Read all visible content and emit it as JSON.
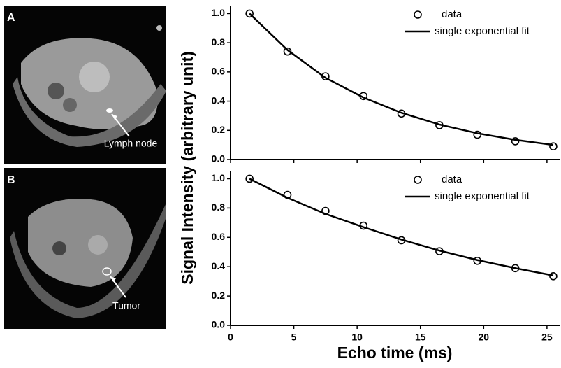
{
  "images": [
    {
      "letter": "A",
      "label": "Lymph node"
    },
    {
      "letter": "B",
      "label": "Tumor"
    }
  ],
  "chart_data": [
    {
      "type": "line",
      "ylabel": "Signal Intensity (arbitrary unit)",
      "legend": "upper right",
      "x": [
        1.5,
        4.5,
        7.5,
        10.5,
        13.5,
        16.5,
        19.5,
        22.5,
        25.5
      ],
      "series": [
        {
          "name": "data",
          "color": "#000000",
          "marker": "open-circle",
          "values": [
            1.0,
            0.74,
            0.57,
            0.435,
            0.315,
            0.235,
            0.17,
            0.125,
            0.09
          ]
        },
        {
          "name": "single exponential fit",
          "color": "#000000",
          "marker": "none",
          "values": [
            1.0,
            0.75,
            0.56,
            0.425,
            0.32,
            0.24,
            0.18,
            0.135,
            0.1
          ]
        }
      ],
      "xlim": [
        0,
        26
      ],
      "xticks": [
        0,
        5,
        10,
        15,
        20,
        25
      ],
      "ylim": [
        0,
        1.05
      ],
      "yticks": [
        {
          "value": 0,
          "label": "0.0"
        },
        0.2,
        0.4,
        0.6,
        0.8,
        {
          "value": 1,
          "label": "1.0"
        }
      ]
    },
    {
      "type": "line",
      "xlabel": "Echo time (ms)",
      "legend": "upper right",
      "x": [
        1.5,
        4.5,
        7.5,
        10.5,
        13.5,
        16.5,
        19.5,
        22.5,
        25.5
      ],
      "series": [
        {
          "name": "data",
          "color": "#000000",
          "marker": "open-circle",
          "values": [
            1.0,
            0.89,
            0.78,
            0.68,
            0.58,
            0.505,
            0.44,
            0.39,
            0.335
          ]
        },
        {
          "name": "single exponential fit",
          "color": "#000000",
          "marker": "none",
          "values": [
            1.0,
            0.87,
            0.76,
            0.67,
            0.585,
            0.51,
            0.445,
            0.39,
            0.34
          ]
        }
      ],
      "xlim": [
        0,
        26
      ],
      "xticks": [
        0,
        5,
        10,
        15,
        20,
        25
      ],
      "ylim": [
        0,
        1.05
      ],
      "yticks": [
        {
          "value": 0,
          "label": "0.0"
        },
        0.2,
        0.4,
        0.6,
        0.8,
        {
          "value": 1,
          "label": "1.0"
        }
      ]
    }
  ]
}
